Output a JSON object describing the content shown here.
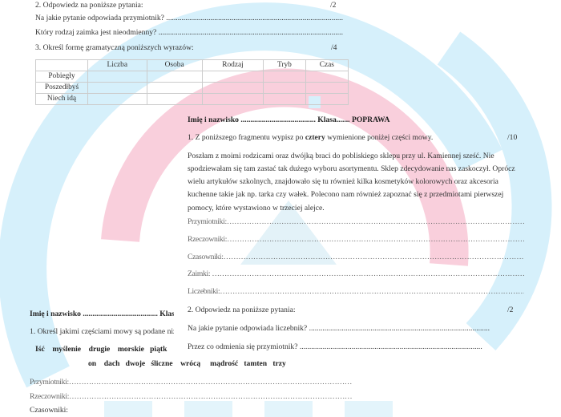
{
  "watermark": {
    "colors": {
      "pink": "#f7c3d3",
      "blue": "#cfeefa"
    }
  },
  "page_a": {
    "q2_heading": "2. Odpowiedz na poniższe pytania:",
    "q2_points": "/2",
    "q2_questions": [
      "Na jakie pytanie odpowiada przymiotnik? ............................................................................................",
      "Który rodzaj zaimka jest nieodmienny? ................................................................................................"
    ],
    "q3_heading": "3. Określ formę gramatyczną poniższych wyrazów:",
    "q3_points": "/4",
    "table": {
      "columns": [
        "",
        "Liczba",
        "Osoba",
        "Rodzaj",
        "Tryb",
        "Czas"
      ],
      "rows": [
        "Pobiegły",
        "Poszedłbyś",
        "Niech idą"
      ]
    }
  },
  "page_b": {
    "header_name": "Imię i nazwisko ....................................... Klasa....... ",
    "header_tag": "POPRAWA",
    "q1_prefix": "1. Z poniższego fragmentu wypisz po ",
    "q1_bold": "cztery",
    "q1_suffix": " wymienione poniżej części mowy.",
    "q1_points": "/10",
    "paragraph": [
      "Poszłam z moimi rodzicami oraz dwójką braci do pobliskiego sklepu przy ul. Kamiennej sześć. Nie",
      "spodziewałam się tam zastać tak dużego wyboru asortymentu. Sklep zdecydowanie nas zaskoczył. Oprócz",
      "wielu artykułów szkolnych, znajdowało się tu również kilka kosmetyków kolorowych oraz akcesoria",
      "kuchenne takie jak np. tarka czy wałek. Polecono nam również zapoznać się z przedmiotami pierwszej",
      "pomocy, które wystawiono w trzeciej alejce."
    ],
    "fields": [
      "Przymiotniki:……………………………………………………………………………………………………………………",
      "Rzeczowniki:……………………………………………………………………………………………………………………",
      "Czasowniki:……………………………………………………………………………………………………………………",
      "Zaimki: ……………………………………………………………………………………………………………………",
      "Liczebniki:……………………………………………………………………………………………………………………"
    ],
    "q2_heading": "2. Odpowiedz na poniższe pytania:",
    "q2_points": "/2",
    "q2_questions": [
      "Na jakie pytanie odpowiada liczebnik? ..............................................................................................",
      "Przez co odmienia się przymiotnik? ..............................................................................................."
    ]
  },
  "page_c": {
    "header_name": "Imię i nazwisko ....................................... Klas",
    "q1_heading": "1. Określ jakimi częściami mowy są podane niż",
    "words_row1": "Iść    myślenie    drugie    morskie   piątk",
    "words_row2": "on    dach   dwoje   śliczne    wrócą     mądrość   tamten   trzy",
    "fields": [
      "Przymiotniki:……………………………………………………………………………………………………………………",
      "Rzeczowniki:……………………………………………………………………………………………………………………",
      "Czasowniki:"
    ]
  }
}
